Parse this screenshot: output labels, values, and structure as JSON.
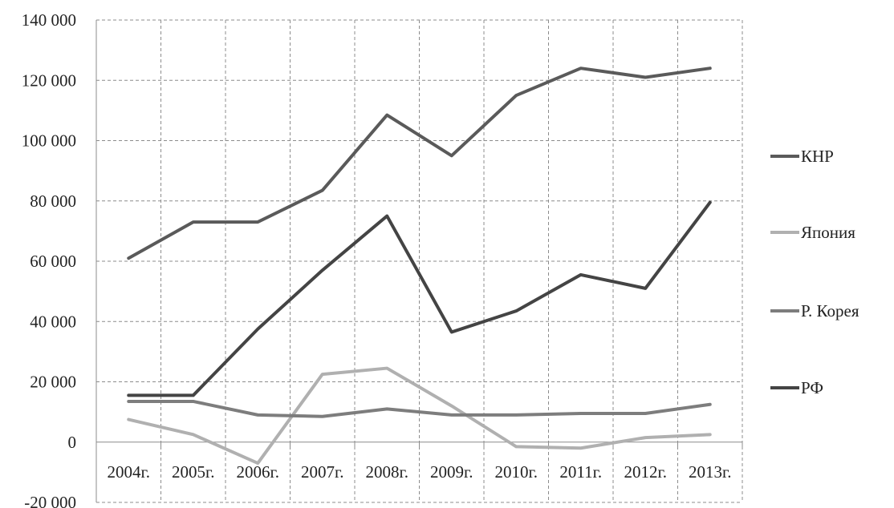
{
  "chart_data": {
    "type": "line",
    "title": "",
    "xlabel": "",
    "ylabel": "",
    "categories": [
      "2004г.",
      "2005г.",
      "2006г.",
      "2007г.",
      "2008г.",
      "2009г.",
      "2010г.",
      "2011г.",
      "2012г.",
      "2013г."
    ],
    "ylim": [
      -20000,
      140000
    ],
    "yticks": [
      -20000,
      0,
      20000,
      40000,
      60000,
      80000,
      100000,
      120000,
      140000
    ],
    "ytick_labels": [
      "-20 000",
      "0",
      "20 000",
      "40 000",
      "60 000",
      "80 000",
      "100 000",
      "120 000",
      "140 000"
    ],
    "grid": true,
    "legend_position": "right",
    "series": [
      {
        "name": "КНР",
        "color": "#5a5a5a",
        "values": [
          61000,
          73000,
          73000,
          83500,
          108500,
          95000,
          115000,
          124000,
          121000,
          124000
        ]
      },
      {
        "name": "Япония",
        "color": "#b0b0b0",
        "values": [
          7500,
          2500,
          -7000,
          22500,
          24500,
          12000,
          -1500,
          -2000,
          1500,
          2500
        ]
      },
      {
        "name": "Р. Корея",
        "color": "#7d7d7d",
        "values": [
          13500,
          13500,
          9000,
          8500,
          11000,
          9000,
          9000,
          9500,
          9500,
          12500
        ]
      },
      {
        "name": "РФ",
        "color": "#444444",
        "values": [
          15500,
          15500,
          37500,
          57000,
          75000,
          36500,
          43500,
          55500,
          51000,
          79500
        ]
      }
    ]
  }
}
